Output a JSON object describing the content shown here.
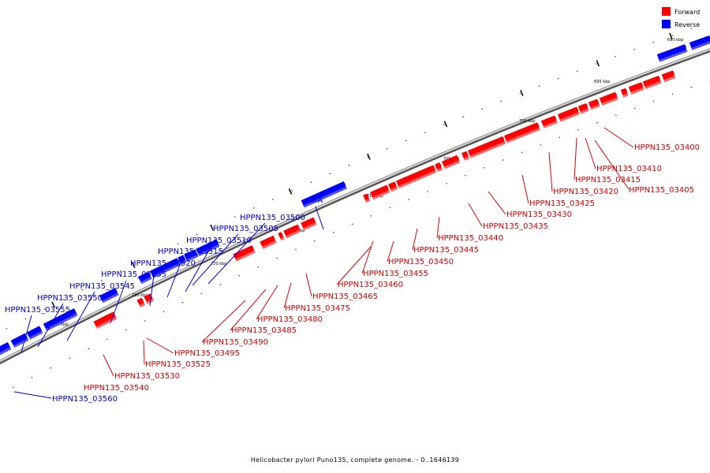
{
  "legend": {
    "forward_label": "Forward",
    "reverse_label": "Reverse",
    "forward_color": "#ff0000",
    "reverse_color": "#0000ff"
  },
  "caption": "Helicobacter pylori Puno135, complete genome. - 0..1646139",
  "ticks": [
    "690 kbp",
    "695 kbp",
    "700 kbp",
    "705 kbp",
    "710 kbp",
    "715 kbp",
    "720 kbp",
    "725 kbp",
    "730 kbp"
  ],
  "forward_genes": [
    "HPPN135_03400",
    "HPPN135_03405",
    "HPPN135_03410",
    "HPPN135_03415",
    "HPPN135_03420",
    "HPPN135_03425",
    "HPPN135_03430",
    "HPPN135_03435",
    "HPPN135_03440",
    "HPPN135_03445",
    "HPPN135_03450",
    "HPPN135_03455",
    "HPPN135_03460",
    "HPPN135_03465",
    "HPPN135_03475",
    "HPPN135_03480",
    "HPPN135_03485",
    "HPPN135_03490",
    "HPPN135_03495",
    "HPPN135_03525",
    "HPPN135_03530",
    "HPPN135_03540"
  ],
  "reverse_genes": [
    "uvrA",
    "HPPN135_03500",
    "HPPN135_03505",
    "HPPN135_03510",
    "HPPN135_03515",
    "HPPN135_03520",
    "HPPN135_03535",
    "HPPN135_03545",
    "HPPN135_03550",
    "HPPN135_03555",
    "HPPN135_03560"
  ]
}
